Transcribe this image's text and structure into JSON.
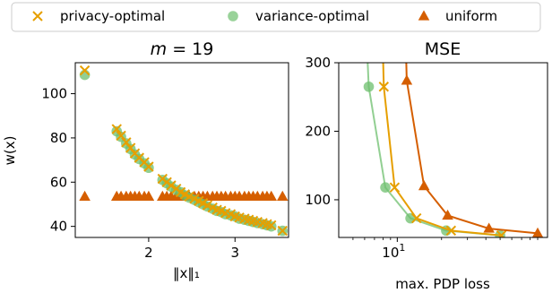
{
  "legend": {
    "entries": [
      {
        "label": "privacy-optimal",
        "color": "#E69F00",
        "marker": "x"
      },
      {
        "label": "variance-optimal",
        "color": "#6DBF6D",
        "marker": "circle"
      },
      {
        "label": "uniform",
        "color": "#D55E00",
        "marker": "triangle"
      }
    ],
    "placement": "top"
  },
  "chart_data": [
    {
      "type": "scatter",
      "title": "m = 19",
      "title_math_var": "m",
      "title_rest": " = 19",
      "xlabel": "‖x‖₁",
      "ylabel": "w(x)",
      "xlim": [
        1.15,
        3.62
      ],
      "ylim": [
        35,
        114
      ],
      "xticks": [
        2,
        3
      ],
      "yticks": [
        40,
        60,
        80,
        100
      ],
      "series": [
        {
          "name": "uniform",
          "marker": "triangle",
          "color": "#D55E00",
          "x": [
            1.26,
            1.63,
            1.68,
            1.74,
            1.79,
            1.84,
            1.89,
            1.95,
            2.0,
            2.16,
            2.21,
            2.26,
            2.32,
            2.37,
            2.42,
            2.47,
            2.53,
            2.58,
            2.63,
            2.68,
            2.74,
            2.79,
            2.84,
            2.89,
            2.95,
            3.0,
            3.05,
            3.11,
            3.16,
            3.21,
            3.26,
            3.32,
            3.37,
            3.42,
            3.55
          ],
          "y": [
            53.5,
            53.5,
            53.5,
            53.5,
            53.5,
            53.5,
            53.5,
            53.5,
            53.5,
            53.5,
            53.5,
            53.5,
            53.5,
            53.5,
            53.5,
            53.5,
            53.5,
            53.5,
            53.5,
            53.5,
            53.5,
            53.5,
            53.5,
            53.5,
            53.5,
            53.5,
            53.5,
            53.5,
            53.5,
            53.5,
            53.5,
            53.5,
            53.5,
            53.5,
            53.5
          ]
        },
        {
          "name": "variance-optimal",
          "marker": "circle",
          "color": "#6DBF6D",
          "x": [
            1.26,
            1.63,
            1.68,
            1.74,
            1.79,
            1.84,
            1.89,
            1.95,
            2.0,
            2.16,
            2.21,
            2.26,
            2.32,
            2.37,
            2.42,
            2.47,
            2.53,
            2.58,
            2.63,
            2.68,
            2.74,
            2.79,
            2.84,
            2.89,
            2.95,
            3.0,
            3.05,
            3.11,
            3.16,
            3.21,
            3.26,
            3.32,
            3.37,
            3.42,
            3.55
          ],
          "y": [
            108.5,
            83,
            80.5,
            77.5,
            75,
            72.5,
            70.5,
            68.5,
            66.5,
            61,
            59.5,
            58,
            56.5,
            55.5,
            54,
            53,
            52,
            51,
            50,
            49,
            48,
            47,
            46.5,
            45.5,
            45,
            44.5,
            43.5,
            43,
            42.5,
            42,
            41.5,
            41,
            40.5,
            40,
            38
          ]
        },
        {
          "name": "privacy-optimal",
          "marker": "x",
          "color": "#E69F00",
          "x": [
            1.26,
            1.63,
            1.68,
            1.74,
            1.79,
            1.84,
            1.89,
            1.95,
            2.0,
            2.16,
            2.21,
            2.26,
            2.32,
            2.37,
            2.42,
            2.47,
            2.53,
            2.58,
            2.63,
            2.68,
            2.74,
            2.79,
            2.84,
            2.89,
            2.95,
            3.0,
            3.05,
            3.11,
            3.16,
            3.21,
            3.26,
            3.32,
            3.37,
            3.42,
            3.55
          ],
          "y": [
            110.5,
            84,
            81,
            78,
            75.5,
            73,
            71,
            69,
            67,
            61.5,
            60,
            58.5,
            57,
            55.5,
            54.5,
            53.5,
            52.5,
            51.5,
            50.5,
            49.5,
            48.5,
            47.5,
            47,
            46,
            45.5,
            44.5,
            44,
            43.5,
            43,
            42.5,
            42,
            41.5,
            41,
            40.5,
            38
          ]
        }
      ]
    },
    {
      "type": "line",
      "title": "MSE",
      "xlabel": "max. PDP loss",
      "ylabel": "",
      "xscale": "log",
      "xlim": [
        4.0,
        105
      ],
      "ylim": [
        45,
        300
      ],
      "xticks": [
        10
      ],
      "xtick_labels": [
        {
          "base": "10",
          "exp": "1"
        }
      ],
      "yticks": [
        100,
        200,
        300
      ],
      "series": [
        {
          "name": "variance-optimal",
          "marker": "circle",
          "color": "#6DBF6D",
          "x": [
            6.0,
            6.4,
            8.3,
            12.3,
            21.5,
            50.0
          ],
          "y": [
            400,
            265,
            118,
            73,
            55,
            48
          ]
        },
        {
          "name": "privacy-optimal",
          "marker": "x",
          "color": "#E69F00",
          "x": [
            7.8,
            8.1,
            9.6,
            13.5,
            23.2,
            51.0
          ],
          "y": [
            400,
            265,
            118,
            73,
            55,
            48
          ]
        },
        {
          "name": "uniform",
          "marker": "triangle",
          "color": "#D55E00",
          "x": [
            11.2,
            11.6,
            15.2,
            22.0,
            42.0,
            90.0
          ],
          "y": [
            400,
            274,
            120,
            77,
            58,
            51
          ]
        }
      ]
    }
  ]
}
